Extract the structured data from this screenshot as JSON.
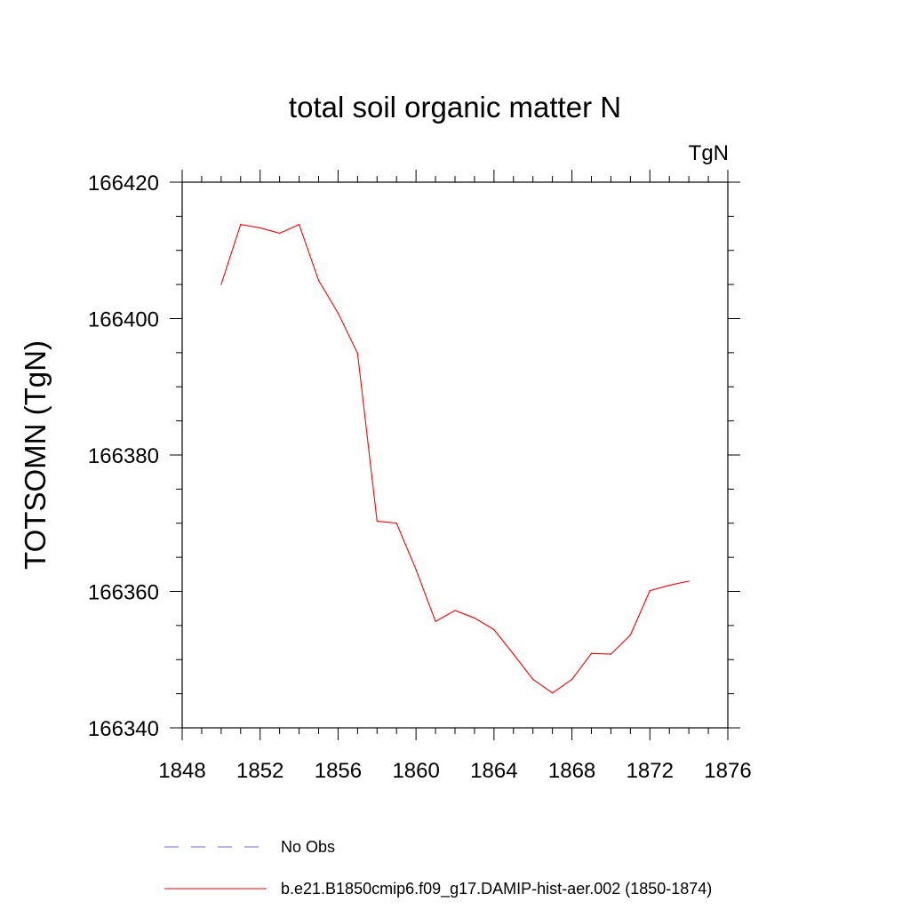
{
  "chart_data": {
    "type": "line",
    "title": "total soil organic matter N",
    "units_label": "TgN",
    "xlabel": "",
    "ylabel": "TOTSOMN  (TgN)",
    "xlim": [
      1848,
      1876
    ],
    "ylim": [
      166340,
      166420
    ],
    "x_ticks": [
      1848,
      1852,
      1856,
      1860,
      1864,
      1868,
      1872,
      1876
    ],
    "y_ticks": [
      166340,
      166360,
      166380,
      166400,
      166420
    ],
    "x_tick_labels": [
      "1848",
      "1852",
      "1856",
      "1860",
      "1864",
      "1868",
      "1872",
      "1876"
    ],
    "y_tick_labels": [
      "166340",
      "166360",
      "166380",
      "166400",
      "166420"
    ],
    "grid": false,
    "legend_position": "bottom",
    "series": [
      {
        "name": "b.e21.B1850cmip6.f09_g17.DAMIP-hist-aer.002 (1850-1874)",
        "color": "#ff0000",
        "style": "solid",
        "x": [
          1850,
          1851,
          1852,
          1853,
          1854,
          1855,
          1856,
          1857,
          1858,
          1859,
          1860,
          1861,
          1862,
          1863,
          1864,
          1865,
          1866,
          1867,
          1868,
          1869,
          1870,
          1871,
          1872,
          1873,
          1874
        ],
        "y": [
          166405.0,
          166413.8,
          166413.3,
          166412.5,
          166413.8,
          166405.6,
          166400.8,
          166394.9,
          166370.3,
          166370.0,
          166363.2,
          166355.6,
          166357.2,
          166356.1,
          166354.4,
          166350.8,
          166347.1,
          166345.1,
          166347.1,
          166350.9,
          166350.8,
          166353.6,
          166360.1,
          166360.9,
          166361.5
        ]
      }
    ],
    "legend": [
      {
        "label": "No Obs",
        "color": "#6a6ac8",
        "style": "dashed"
      },
      {
        "label": "b.e21.B1850cmip6.f09_g17.DAMIP-hist-aer.002 (1850-1874)",
        "color": "#ff0000",
        "style": "solid"
      }
    ]
  }
}
